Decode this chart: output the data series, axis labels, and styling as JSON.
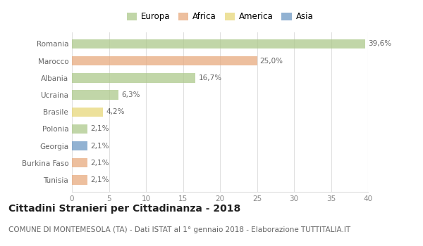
{
  "countries": [
    "Romania",
    "Marocco",
    "Albania",
    "Ucraina",
    "Brasile",
    "Polonia",
    "Georgia",
    "Burkina Faso",
    "Tunisia"
  ],
  "values": [
    39.6,
    25.0,
    16.7,
    6.3,
    4.2,
    2.1,
    2.1,
    2.1,
    2.1
  ],
  "labels": [
    "39,6%",
    "25,0%",
    "16,7%",
    "6,3%",
    "4,2%",
    "2,1%",
    "2,1%",
    "2,1%",
    "2,1%"
  ],
  "colors": [
    "#adc98b",
    "#e8aa7e",
    "#adc98b",
    "#adc98b",
    "#e8d87a",
    "#adc98b",
    "#6e99c4",
    "#e8aa7e",
    "#e8aa7e"
  ],
  "legend_labels": [
    "Europa",
    "Africa",
    "America",
    "Asia"
  ],
  "legend_colors": [
    "#adc98b",
    "#e8aa7e",
    "#e8d87a",
    "#6e99c4"
  ],
  "title": "Cittadini Stranieri per Cittadinanza - 2018",
  "subtitle": "COMUNE DI MONTEMESOLA (TA) - Dati ISTAT al 1° gennaio 2018 - Elaborazione TUTTITALIA.IT",
  "xlim": [
    0,
    40
  ],
  "xticks": [
    0,
    5,
    10,
    15,
    20,
    25,
    30,
    35,
    40
  ],
  "background_color": "#ffffff",
  "grid_color": "#e0e0e0",
  "bar_height": 0.55,
  "title_fontsize": 10,
  "subtitle_fontsize": 7.5,
  "label_fontsize": 7.5,
  "tick_fontsize": 7.5,
  "legend_fontsize": 8.5
}
